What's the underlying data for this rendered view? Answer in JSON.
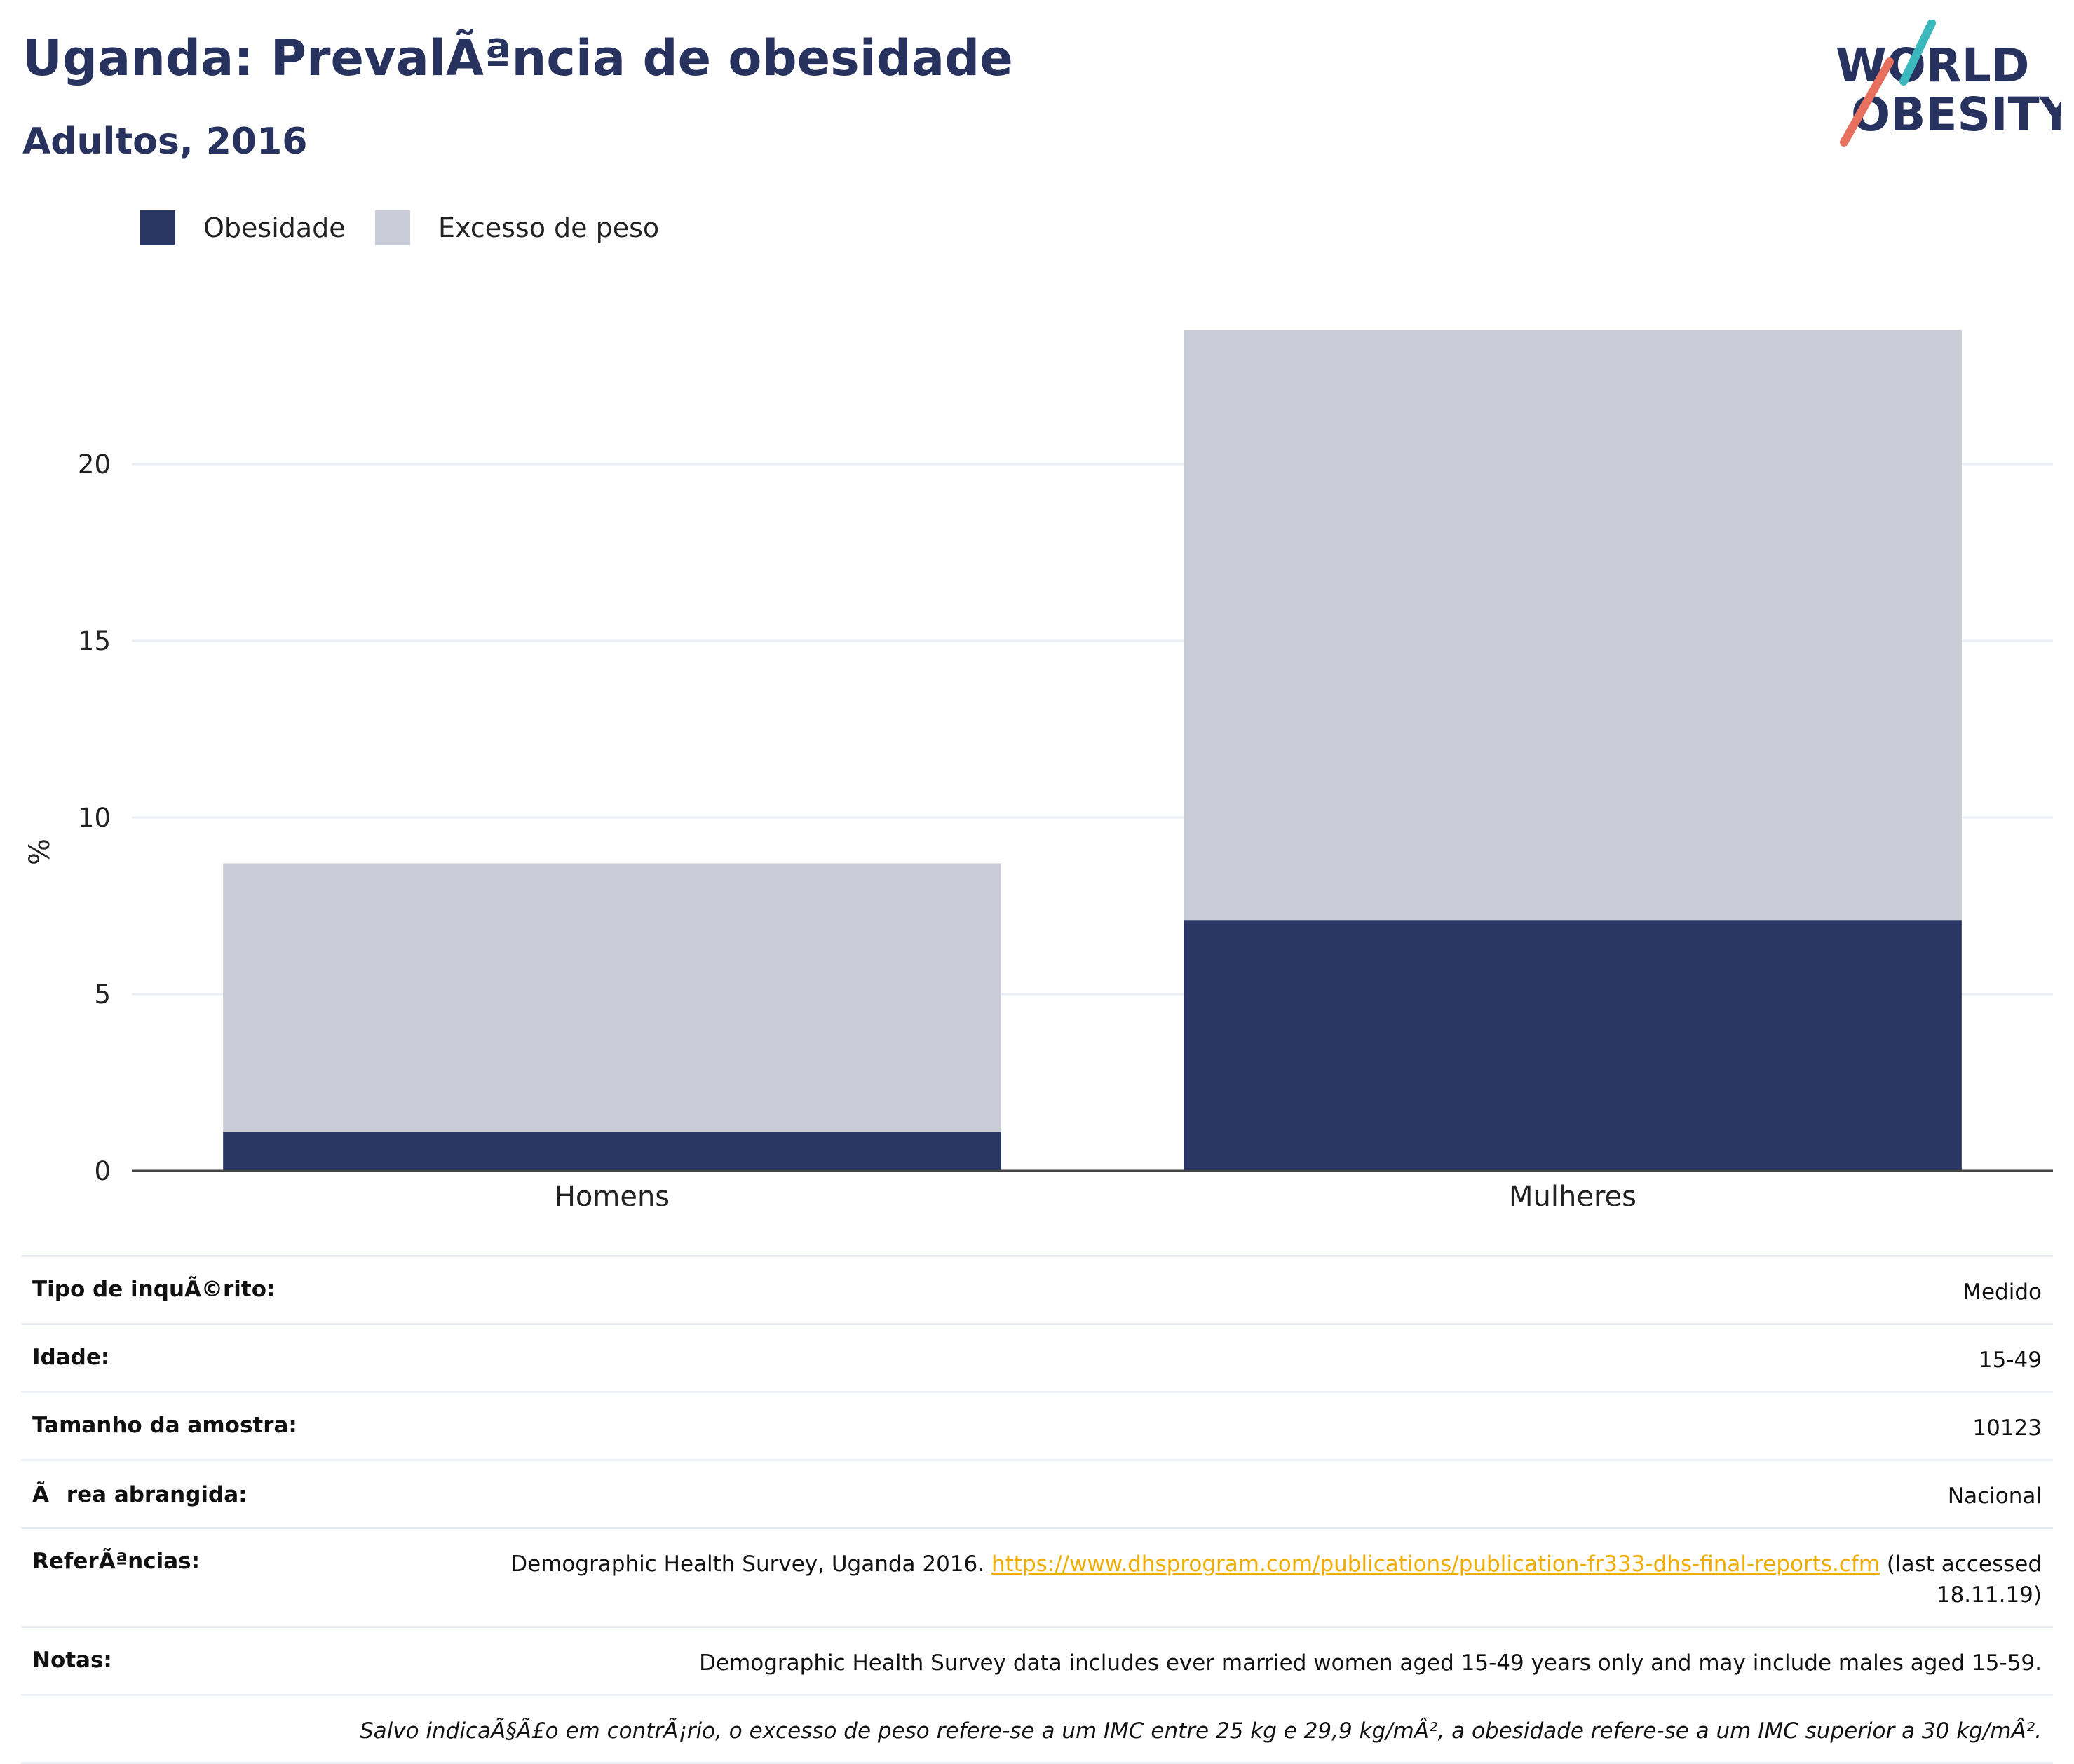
{
  "header": {
    "title": "Uganda: PrevalÃªncia de obesidade",
    "subtitle": "Adultos, 2016"
  },
  "logo": {
    "line1": "WORLD",
    "line2": "OBESITY"
  },
  "colors": {
    "obesity": "#2a3663",
    "overweight": "#c9cbd6",
    "title": "#27325e",
    "link": "#f0ad00",
    "logo_teal": "#3bb8bd",
    "logo_coral": "#e8705e"
  },
  "legend": {
    "items": [
      {
        "label": "Obesidade",
        "color": "#2a3663"
      },
      {
        "label": "Excesso de peso",
        "color": "#c9cbd6"
      }
    ]
  },
  "chart_data": {
    "type": "bar",
    "stacked": true,
    "categories": [
      "Homens",
      "Mulheres"
    ],
    "series": [
      {
        "name": "Obesidade",
        "values": [
          1.1,
          7.1
        ]
      },
      {
        "name": "Excesso de peso",
        "values": [
          7.6,
          16.7
        ]
      }
    ],
    "ylabel": "%",
    "ylim": [
      0,
      25
    ],
    "yticks": [
      0,
      5,
      10,
      15,
      20
    ],
    "grid": true,
    "legend_position": "top-left"
  },
  "info": {
    "survey_type": {
      "label": "Tipo de inquÃ©rito:",
      "value": "Medido"
    },
    "age": {
      "label": "Idade:",
      "value": "15-49"
    },
    "sample_size": {
      "label": "Tamanho da amostra:",
      "value": "10123"
    },
    "area": {
      "label": "Ãrea abrangida:",
      "value": "Nacional"
    },
    "references": {
      "label": "ReferÃªncias:",
      "text_before": "Demographic Health Survey, Uganda 2016.",
      "link": "https://www.dhsprogram.com/publications/publication-fr333-dhs-final-reports.cfm",
      "text_after": "(last accessed 18.11.19)"
    },
    "notes": {
      "label": "Notas:",
      "value": "Demographic Health Survey data includes ever married women aged 15-49 years only and may include males aged 15-59."
    },
    "footnote": "Salvo indicaÃ§Ã£o em contrÃ¡rio, o excesso de peso refere-se a um IMC entre 25 kg e 29,9 kg/mÂ², a obesidade refere-se a um IMC superior a 30 kg/mÂ²."
  }
}
